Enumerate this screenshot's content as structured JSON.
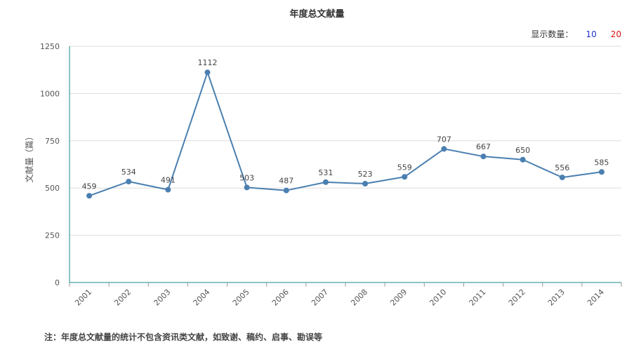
{
  "chart_data": {
    "type": "line",
    "title": "年度总文献量",
    "ylabel": "文献量（篇）",
    "xlabel": "",
    "categories": [
      "2001",
      "2002",
      "2003",
      "2004",
      "2005",
      "2006",
      "2007",
      "2008",
      "2009",
      "2010",
      "2011",
      "2012",
      "2013",
      "2014"
    ],
    "series": [
      {
        "values": [
          459,
          534,
          491,
          1112,
          503,
          487,
          531,
          523,
          559,
          707,
          667,
          650,
          556,
          585
        ]
      }
    ],
    "ylim": [
      0,
      1250
    ],
    "yticks": [
      0,
      250,
      500,
      750,
      1000,
      1250
    ],
    "grid": true,
    "legend": "none",
    "colors": {
      "line": "#4a7fb0",
      "axis": "#1a8a8a",
      "grid": "#dddddd"
    }
  },
  "controls": {
    "label": "显示数量：",
    "options": [
      "10",
      "20"
    ]
  },
  "footnote": "注：年度总文献量的统计不包含资讯类文献，如致谢、稿约、启事、勘误等"
}
